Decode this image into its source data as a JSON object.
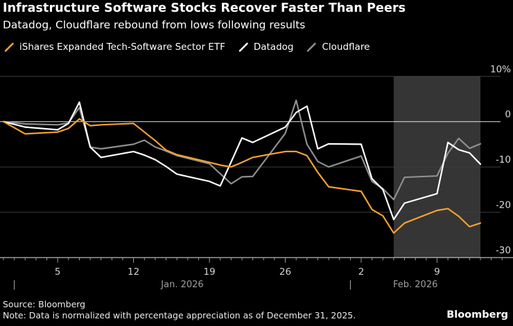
{
  "header": {
    "title": "Infrastructure Software Stocks Recover Faster Than Peers",
    "subtitle": "Datadog, Cloudflare rebound from lows following results"
  },
  "footer": {
    "source": "Source: Bloomberg",
    "note": "Note: Data is normalized with percentage appreciation as of December 31, 2025.",
    "logo": "Bloomberg"
  },
  "colors": {
    "background": "#000000",
    "shade": "#353535",
    "grid": "#3c3c3c",
    "zero_line": "#e6e6e6",
    "axis_line": "#dedede",
    "tick": "#9a9a9a"
  },
  "chart_data": {
    "type": "line",
    "title": "Infrastructure Software Stocks Recover Faster Than Peers",
    "unit": "%",
    "x_dates": [
      "Dec 31",
      "Jan 2",
      "Jan 5",
      "Jan 6",
      "Jan 7",
      "Jan 8",
      "Jan 9",
      "Jan 12",
      "Jan 13",
      "Jan 14",
      "Jan 15",
      "Jan 16",
      "Jan 19",
      "Jan 20",
      "Jan 21",
      "Jan 22",
      "Jan 23",
      "Jan 26",
      "Jan 27",
      "Jan 28",
      "Jan 29",
      "Jan 30",
      "Feb 2",
      "Feb 3",
      "Feb 4",
      "Feb 5",
      "Feb 6",
      "Feb 9",
      "Feb 10",
      "Feb 11",
      "Feb 12",
      "Feb 13"
    ],
    "day_offsets": [
      0,
      2,
      5,
      6,
      7,
      8,
      9,
      12,
      13,
      14,
      15,
      16,
      19,
      20,
      21,
      22,
      23,
      26,
      27,
      28,
      29,
      30,
      33,
      34,
      35,
      36,
      37,
      40,
      41,
      42,
      43,
      44
    ],
    "series": [
      {
        "name": "iShares Expanded Tech-Software Sector ETF",
        "color": "#f7a22f",
        "values": [
          0,
          -2.7,
          -2.3,
          -1.5,
          0.6,
          -0.9,
          -0.7,
          -0.4,
          -2.3,
          -4.2,
          -6.3,
          -7.3,
          -9.0,
          -9.6,
          -10.0,
          -9.0,
          -7.9,
          -6.6,
          -6.6,
          -7.5,
          -11.2,
          -14.4,
          -15.4,
          -19.4,
          -20.8,
          -24.6,
          -22.4,
          -19.6,
          -19.2,
          -20.9,
          -23.2,
          -22.4
        ]
      },
      {
        "name": "Datadog",
        "color": "#ffffff",
        "values": [
          0,
          -1.2,
          -1.8,
          -0.4,
          4.3,
          -5.6,
          -7.9,
          -6.6,
          -7.4,
          -8.4,
          -9.9,
          -11.6,
          -13.2,
          -14.2,
          -8.9,
          -3.6,
          -4.6,
          -1.2,
          2.0,
          3.4,
          -6.0,
          -4.9,
          -5.0,
          -12.6,
          -15.0,
          -21.6,
          -18.0,
          -15.9,
          -4.6,
          -6.2,
          -6.9,
          -9.4
        ]
      },
      {
        "name": "Cloudflare",
        "color": "#8f8f8f",
        "values": [
          0,
          -0.5,
          -0.7,
          -0.3,
          3.1,
          -5.6,
          -6.0,
          -5.0,
          -4.1,
          -5.6,
          -6.5,
          -7.5,
          -9.3,
          -11.5,
          -13.7,
          -12.2,
          -12.1,
          -2.6,
          4.7,
          -5.0,
          -8.8,
          -10.0,
          -7.6,
          -13.2,
          -14.8,
          -17.2,
          -12.3,
          -12.0,
          -7.0,
          -3.7,
          -5.9,
          -4.9
        ]
      }
    ],
    "y_axis": {
      "range": [
        -30,
        10
      ],
      "grid": true,
      "ticks": [
        {
          "value": 10,
          "label": "10%"
        },
        {
          "value": 0,
          "label": "0"
        },
        {
          "value": -10,
          "label": "-10"
        },
        {
          "value": -20,
          "label": "-20"
        },
        {
          "value": -30,
          "label": "-30"
        }
      ]
    },
    "x_axis": {
      "week_ticks": [
        {
          "day": 5,
          "label": "5"
        },
        {
          "day": 12,
          "label": "12"
        },
        {
          "day": 19,
          "label": "19"
        },
        {
          "day": 26,
          "label": "26"
        },
        {
          "day": 33,
          "label": "2"
        },
        {
          "day": 40,
          "label": "9"
        }
      ],
      "months": [
        {
          "label": "Jan. 2026",
          "separator_day": 1,
          "label_center_day": 16.5
        },
        {
          "label": "Feb. 2026",
          "separator_day": 32,
          "label_center_day": 38
        }
      ]
    },
    "shaded_region": {
      "start_day": 36,
      "end_day": 44
    },
    "legend_position": "top"
  }
}
